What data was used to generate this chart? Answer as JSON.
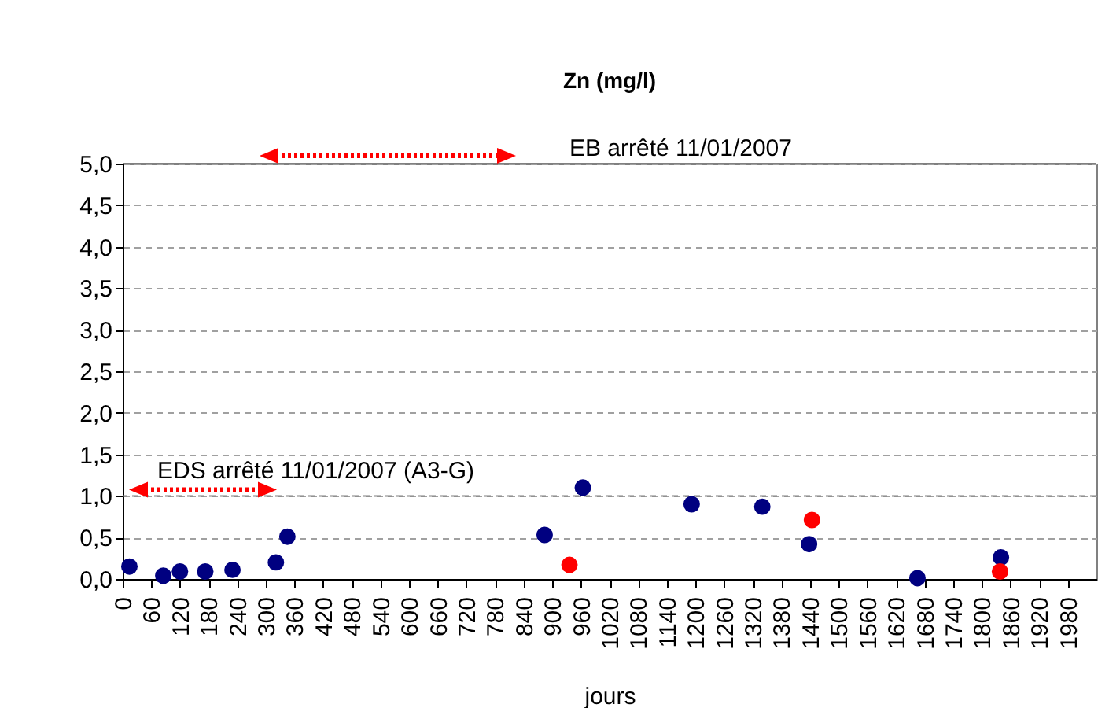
{
  "chart_data": {
    "type": "scatter",
    "title": "Zn (mg/l)",
    "xlabel": "jours",
    "xlim": [
      0,
      2040
    ],
    "xticks": [
      0,
      60,
      120,
      180,
      240,
      300,
      360,
      420,
      480,
      540,
      600,
      660,
      720,
      780,
      840,
      900,
      960,
      1020,
      1080,
      1140,
      1200,
      1260,
      1320,
      1380,
      1440,
      1500,
      1560,
      1620,
      1680,
      1740,
      1800,
      1860,
      1920,
      1980
    ],
    "ylim": [
      0,
      5
    ],
    "yticks": [
      {
        "value": 0,
        "label": "0,0"
      },
      {
        "value": 0.5,
        "label": "0,5"
      },
      {
        "value": 1,
        "label": "1,0"
      },
      {
        "value": 1.5,
        "label": "1,5"
      },
      {
        "value": 2,
        "label": "2,0"
      },
      {
        "value": 2.5,
        "label": "2,5"
      },
      {
        "value": 3,
        "label": "3,0"
      },
      {
        "value": 3.5,
        "label": "3,5"
      },
      {
        "value": 4,
        "label": "4,0"
      },
      {
        "value": 4.5,
        "label": "4,5"
      },
      {
        "value": 5,
        "label": "5,0"
      }
    ],
    "series": [
      {
        "color": "#000080",
        "x": [
          14,
          85,
          120,
          173,
          230,
          321,
          345,
          884,
          964,
          1192,
          1340,
          1438,
          1665,
          1840
        ],
        "values": [
          0.15,
          0.04,
          0.09,
          0.09,
          0.11,
          0.2,
          0.51,
          0.53,
          1.1,
          0.9,
          0.87,
          0.42,
          0.01,
          0.26
        ]
      },
      {
        "color": "#ff0000",
        "x": [
          936,
          1444,
          1838
        ],
        "values": [
          0.17,
          0.71,
          0.09
        ]
      }
    ],
    "ref_lines": [
      {
        "axis": "y",
        "value": 5,
        "label": "EB arrêté 11/01/2007",
        "color": "#808080",
        "line_style": "solid"
      },
      {
        "axis": "y",
        "value": 1,
        "label": "EDS arrêté 11/01/2007 (A3-G)",
        "color": "#808080",
        "line_style": "dashed"
      }
    ],
    "grid": "y",
    "marker": "circle"
  }
}
